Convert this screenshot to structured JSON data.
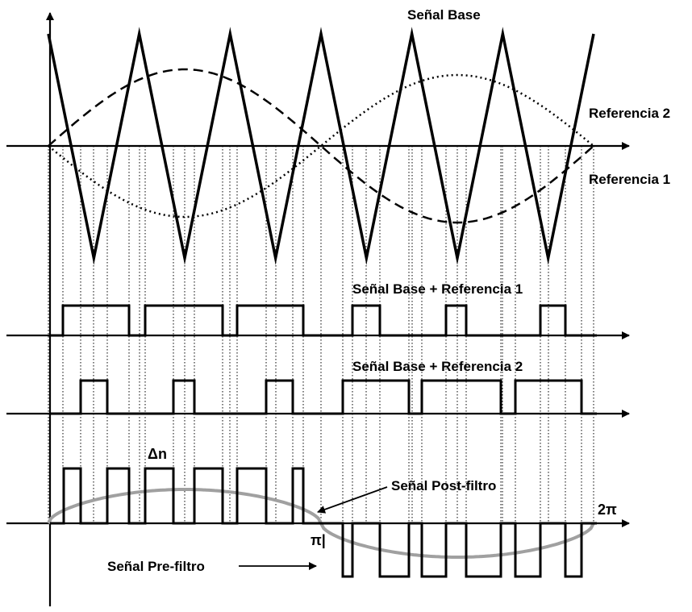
{
  "labels": {
    "base_signal": "Señal Base",
    "reference_2": "Referencia 2",
    "reference_1": "Referencia 1",
    "base_plus_ref1": "Señal Base + Referencia 1",
    "base_plus_ref2": "Señal Base + Referencia 2",
    "delta_n": "Δn",
    "post_filter": "Señal Post-filtro",
    "pre_filter": "Señal Pre-filtro",
    "pi": "π|",
    "two_pi": "2π"
  },
  "colors": {
    "ink": "#000000",
    "filtered_signal": "#a0a0a0",
    "background": "#ffffff"
  },
  "line_styles": {
    "reference_1": "dotted",
    "reference_2": "dashed",
    "base_signal": "solid",
    "filtered_signal": "solid grey"
  }
}
